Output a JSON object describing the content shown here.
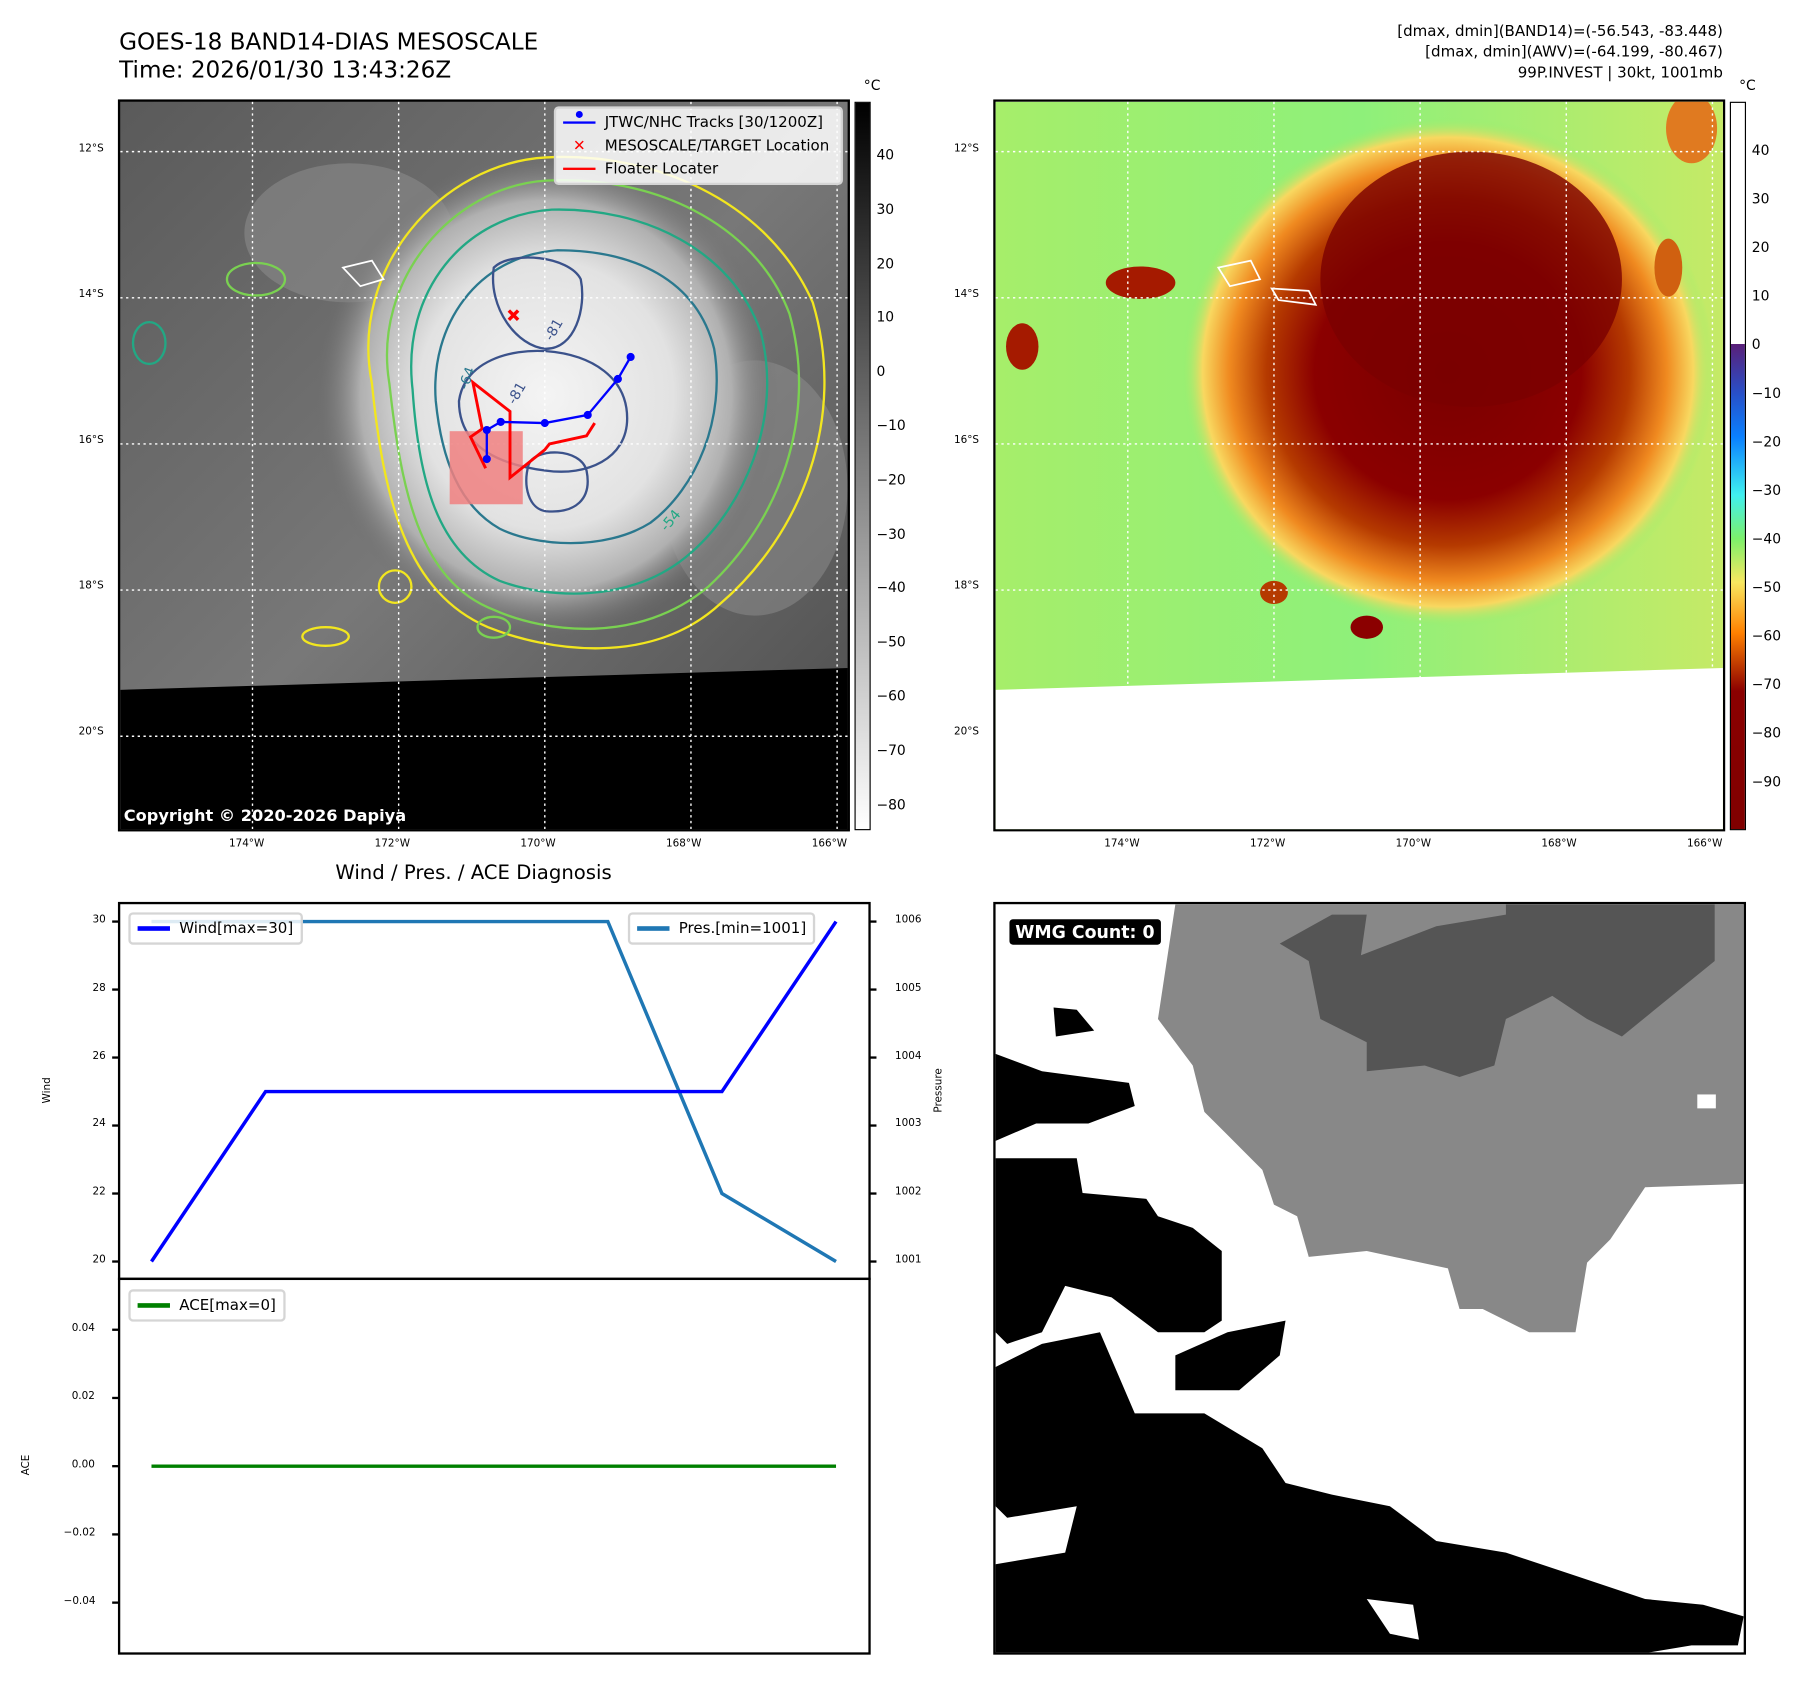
{
  "header": {
    "title": "GOES-18 BAND14-DIAS MESOSCALE",
    "time": "Time: 2026/01/30 13:43:26Z",
    "info_line1": "[dmax, dmin](BAND14)=(-56.543, -83.448)",
    "info_line2": "[dmax, dmin](AWV)=(-64.199, -80.467)",
    "info_line3": "99P.INVEST | 30kt, 1001mb"
  },
  "map": {
    "lat_labels": [
      "12°S",
      "14°S",
      "16°S",
      "18°S",
      "20°S"
    ],
    "lon_labels": [
      "174°W",
      "172°W",
      "170°W",
      "168°W",
      "166°W"
    ],
    "copyright": "Copyright © 2020-2026 Dapiya",
    "legend": {
      "tracks": "JTWC/NHC Tracks [30/1200Z]",
      "target": "MESOSCALE/TARGET Location",
      "floater": "Floater Locater"
    },
    "contour_labels": [
      "-64",
      "-81",
      "-54",
      "-81"
    ],
    "colors": {
      "track": "#0000ff",
      "floater": "#ff0000",
      "target": "#ff0000"
    }
  },
  "colorbar_left": {
    "unit": "°C",
    "ticks": [
      "40",
      "30",
      "20",
      "10",
      "0",
      "−10",
      "−20",
      "−30",
      "−40",
      "−50",
      "−60",
      "−70",
      "−80"
    ]
  },
  "colorbar_right": {
    "unit": "°C",
    "ticks": [
      "40",
      "30",
      "20",
      "10",
      "0",
      "−10",
      "−20",
      "−30",
      "−40",
      "−50",
      "−60",
      "−70",
      "−80",
      "−90"
    ]
  },
  "chart_data": {
    "type": "line",
    "title": "Wind / Pres. / ACE Diagnosis",
    "x": [
      0,
      1,
      2,
      3,
      4,
      5,
      6
    ],
    "upper": {
      "ylabel": "Wind",
      "y2label": "Pressure",
      "ylim": [
        20,
        30
      ],
      "y2lim": [
        1001,
        1006
      ],
      "yticks": [
        "20",
        "22",
        "24",
        "26",
        "28",
        "30"
      ],
      "y2ticks": [
        "1001",
        "1002",
        "1003",
        "1004",
        "1005",
        "1006"
      ],
      "series": [
        {
          "name": "Wind[max=30]",
          "axis": "left",
          "color": "#0000ff",
          "values": [
            20,
            25,
            25,
            25,
            25,
            25,
            30
          ]
        },
        {
          "name": "Pres.[min=1001]",
          "axis": "right",
          "color": "#1f77b4",
          "values": [
            1006,
            1006,
            1006,
            1006,
            1006,
            1002,
            1001
          ]
        }
      ]
    },
    "lower": {
      "ylabel": "ACE",
      "ylim": [
        -0.04,
        0.04
      ],
      "yticks": [
        "0.04",
        "0.02",
        "0.00",
        "−0.02",
        "−0.04"
      ],
      "series": [
        {
          "name": "ACE[max=0]",
          "color": "#008000",
          "values": [
            0,
            0,
            0,
            0,
            0,
            0,
            0
          ]
        }
      ]
    }
  },
  "wmg": {
    "label": "WMG Count: 0"
  }
}
